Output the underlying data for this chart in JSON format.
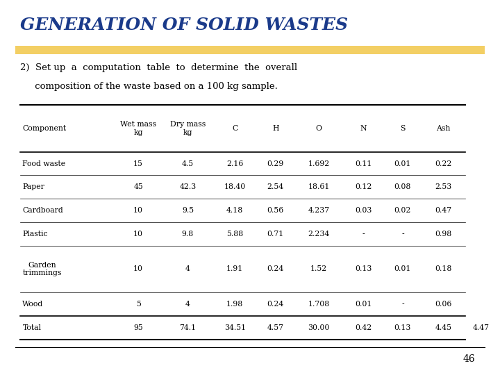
{
  "title": "GENERATION OF SOLID WASTES",
  "subtitle_line1": "2)  Set up  a  computation  table  to  determine  the  overall",
  "subtitle_line2": "     composition of the waste based on a 100 kg sample.",
  "title_color": "#1a3a8a",
  "highlight_color": "#f0c030",
  "background_color": "#ffffff",
  "page_number": "46",
  "table": {
    "columns": [
      "Component",
      "Wet mass\nkg",
      "Dry mass\nkg",
      "C",
      "H",
      "O",
      "N",
      "S",
      "Ash"
    ],
    "rows": [
      [
        "Food waste",
        "15",
        "4.5",
        "2.16",
        "0.29",
        "1.692",
        "0.11",
        "0.01",
        "0.22"
      ],
      [
        "Paper",
        "45",
        "42.3",
        "18.40",
        "2.54",
        "18.61",
        "0.12",
        "0.08",
        "2.53"
      ],
      [
        "Cardboard",
        "10",
        "9.5",
        "4.18",
        "0.56",
        "4.237",
        "0.03",
        "0.02",
        "0.47"
      ],
      [
        "Plastic",
        "10",
        "9.8",
        "5.88",
        "0.71",
        "2.234",
        "-",
        "-",
        "0.98"
      ],
      [
        "Garden\ntrimmings",
        "10",
        "4",
        "1.91",
        "0.24",
        "1.52",
        "0.13",
        "0.01",
        "0.18"
      ],
      [
        "Wood",
        "5",
        "4",
        "1.98",
        "0.24",
        "1.708",
        "0.01",
        "-",
        "0.06"
      ],
      [
        "Total",
        "95",
        "74.1",
        "34.51",
        "4.57",
        "30.00",
        "0.42",
        "0.13",
        "4.45"
      ]
    ],
    "extra_total": "4.47"
  }
}
